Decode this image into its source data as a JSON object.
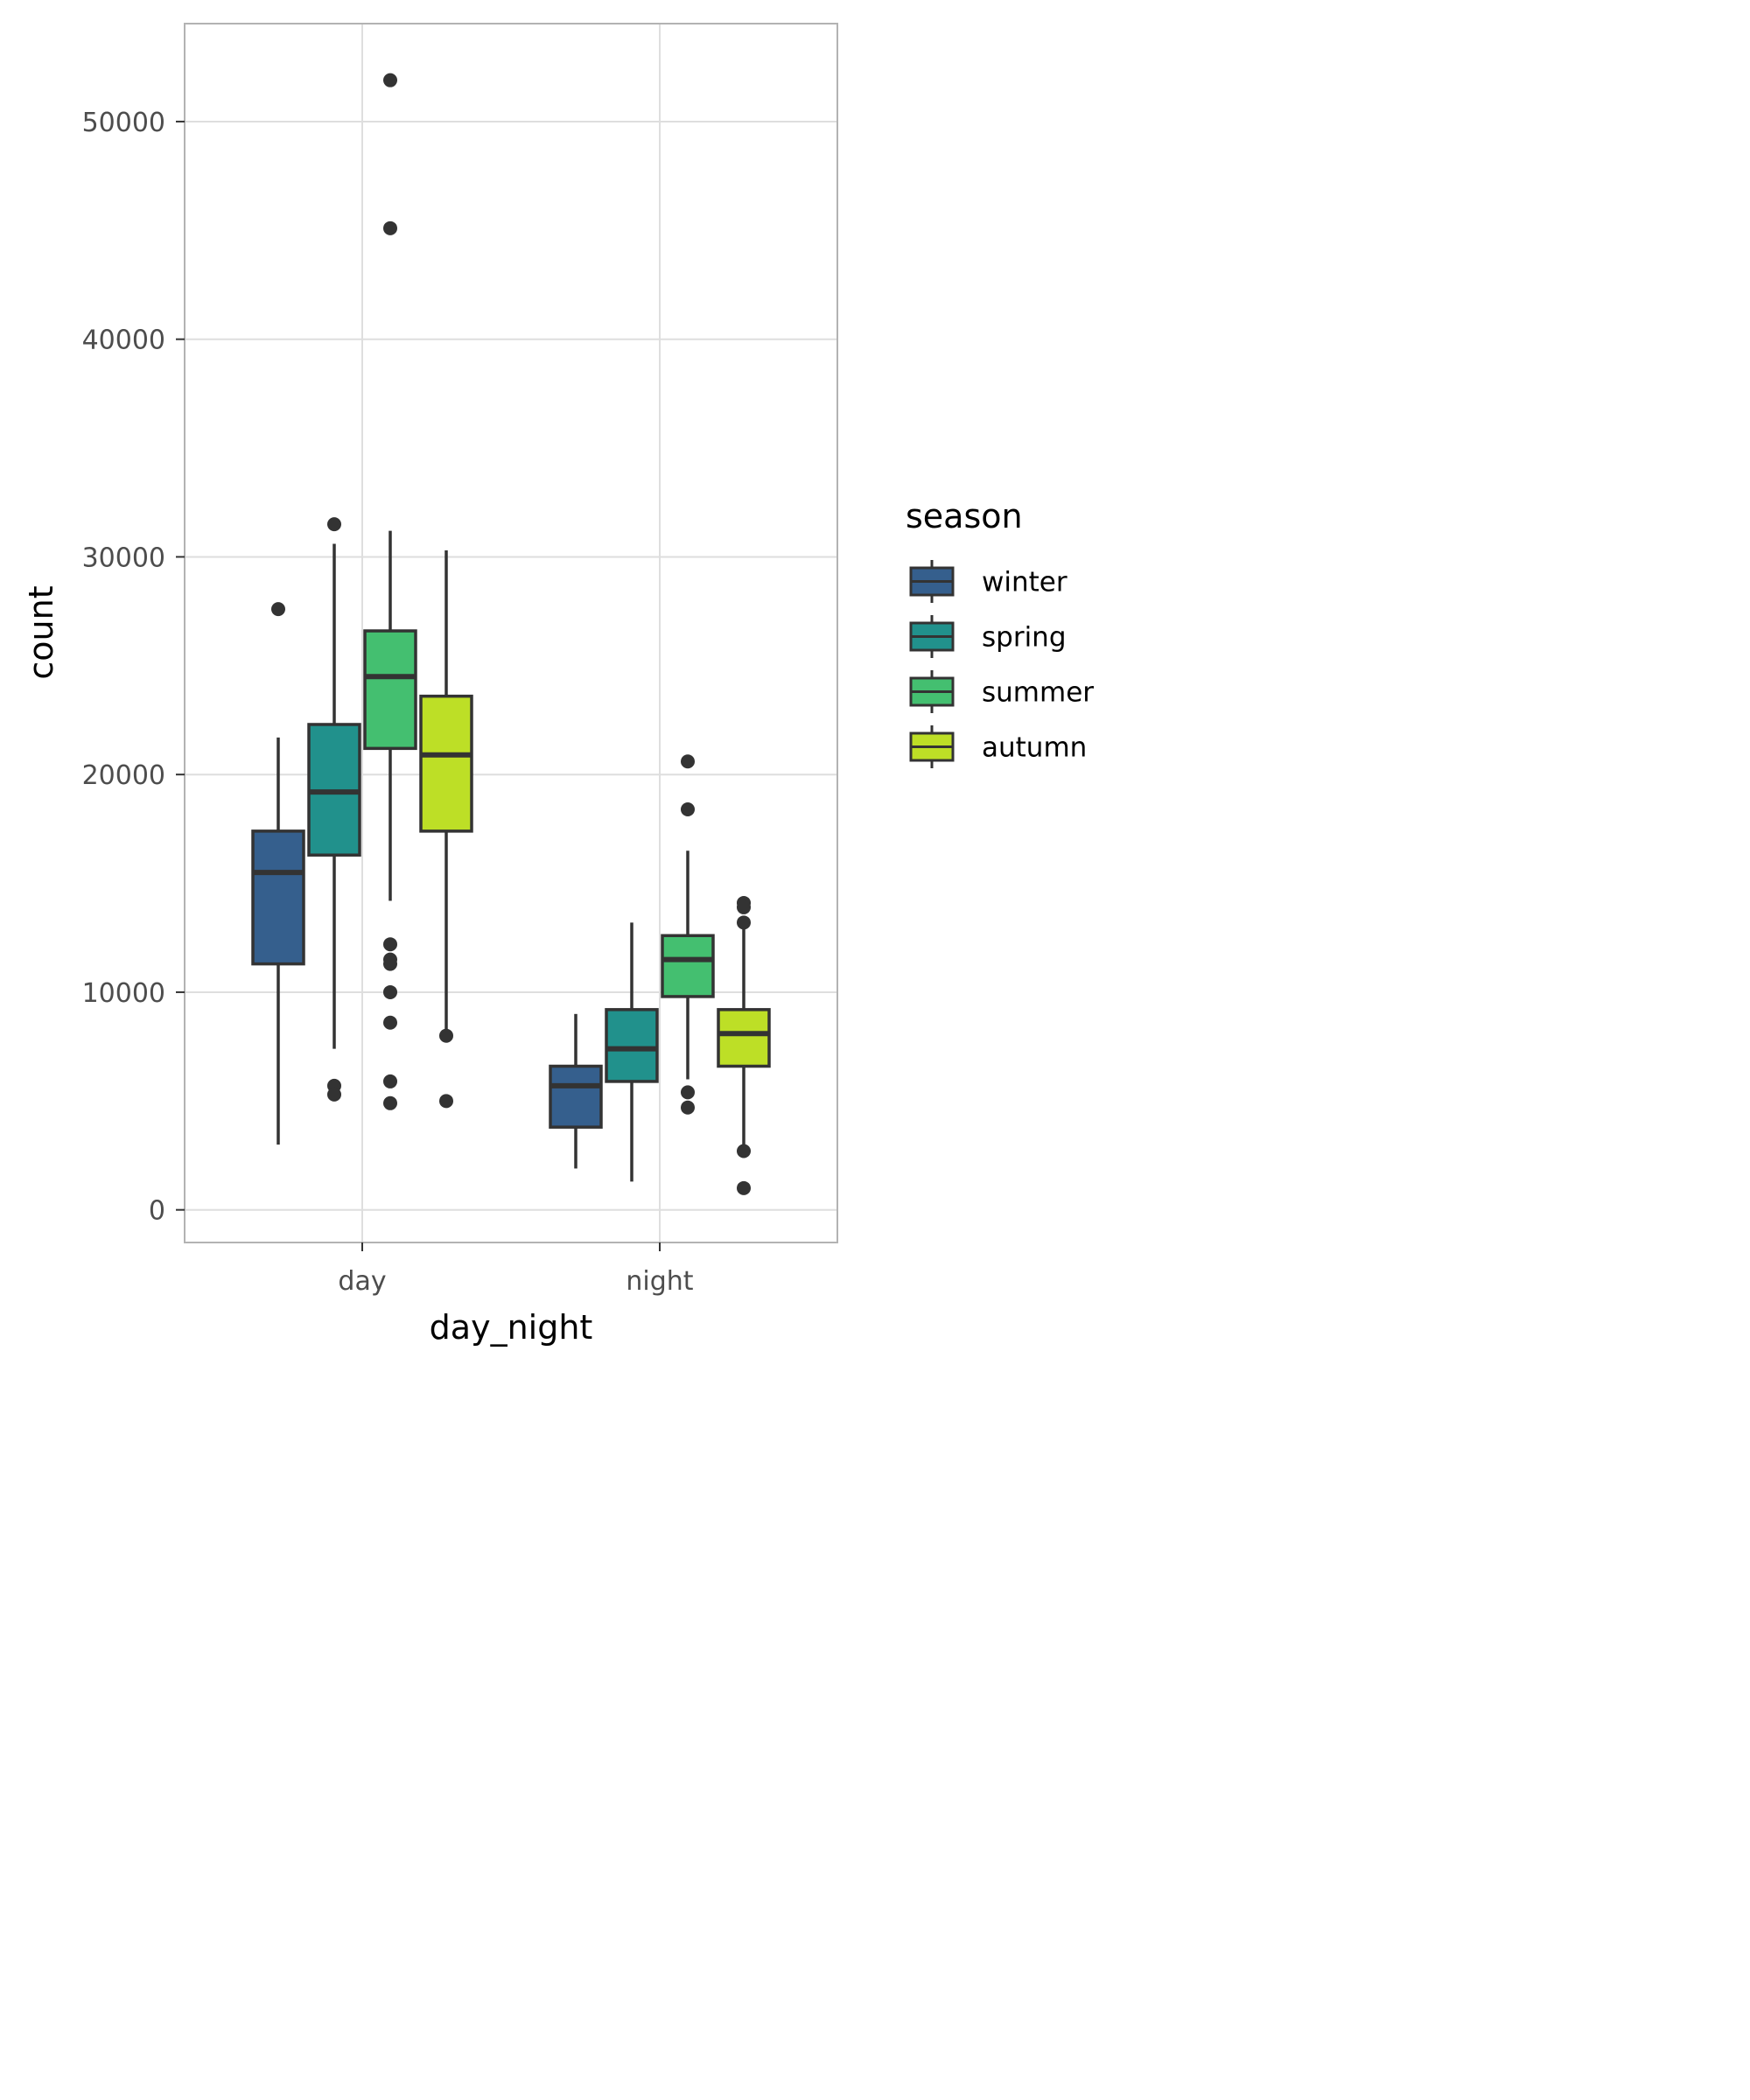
{
  "chart_data": {
    "type": "boxplot",
    "xlabel": "day_night",
    "ylabel": "count",
    "categories": [
      "day",
      "night"
    ],
    "ylim": [
      -1500,
      54500
    ],
    "yticks": [
      0,
      10000,
      20000,
      30000,
      40000,
      50000
    ],
    "ytick_labels": [
      "0",
      "10000",
      "20000",
      "30000",
      "40000",
      "50000"
    ],
    "grid": true,
    "legend": {
      "title": "season",
      "position": "right"
    },
    "series": [
      {
        "name": "winter",
        "color": "#355f8d",
        "stats": [
          {
            "category": "day",
            "whisker_low": 3000,
            "q1": 11300,
            "median": 15500,
            "q3": 17400,
            "whisker_high": 21700,
            "outliers": [
              27600
            ]
          },
          {
            "category": "night",
            "whisker_low": 1900,
            "q1": 3800,
            "median": 5700,
            "q3": 6600,
            "whisker_high": 9000,
            "outliers": []
          }
        ]
      },
      {
        "name": "spring",
        "color": "#21918c",
        "stats": [
          {
            "category": "day",
            "whisker_low": 7400,
            "q1": 16300,
            "median": 19200,
            "q3": 22300,
            "whisker_high": 30600,
            "outliers": [
              31500,
              5700,
              5300
            ]
          },
          {
            "category": "night",
            "whisker_low": 1300,
            "q1": 5900,
            "median": 7400,
            "q3": 9200,
            "whisker_high": 13200,
            "outliers": []
          }
        ]
      },
      {
        "name": "summer",
        "color": "#44bf70",
        "stats": [
          {
            "category": "day",
            "whisker_low": 14200,
            "q1": 21200,
            "median": 24500,
            "q3": 26600,
            "whisker_high": 31200,
            "outliers": [
              51900,
              45100,
              12200,
              11500,
              11300,
              10000,
              8600,
              5900,
              4900
            ]
          },
          {
            "category": "night",
            "whisker_low": 6000,
            "q1": 9800,
            "median": 11500,
            "q3": 12600,
            "whisker_high": 16500,
            "outliers": [
              20600,
              18400,
              5400,
              4700
            ]
          }
        ]
      },
      {
        "name": "autumn",
        "color": "#bddf26",
        "stats": [
          {
            "category": "day",
            "whisker_low": 8000,
            "q1": 17400,
            "median": 20900,
            "q3": 23600,
            "whisker_high": 30300,
            "outliers": [
              8000,
              5000
            ]
          },
          {
            "category": "night",
            "whisker_low": 3000,
            "q1": 6600,
            "median": 8100,
            "q3": 9200,
            "whisker_high": 13000,
            "outliers": [
              14100,
              13900,
              13200,
              2700,
              1000
            ]
          }
        ]
      }
    ]
  }
}
